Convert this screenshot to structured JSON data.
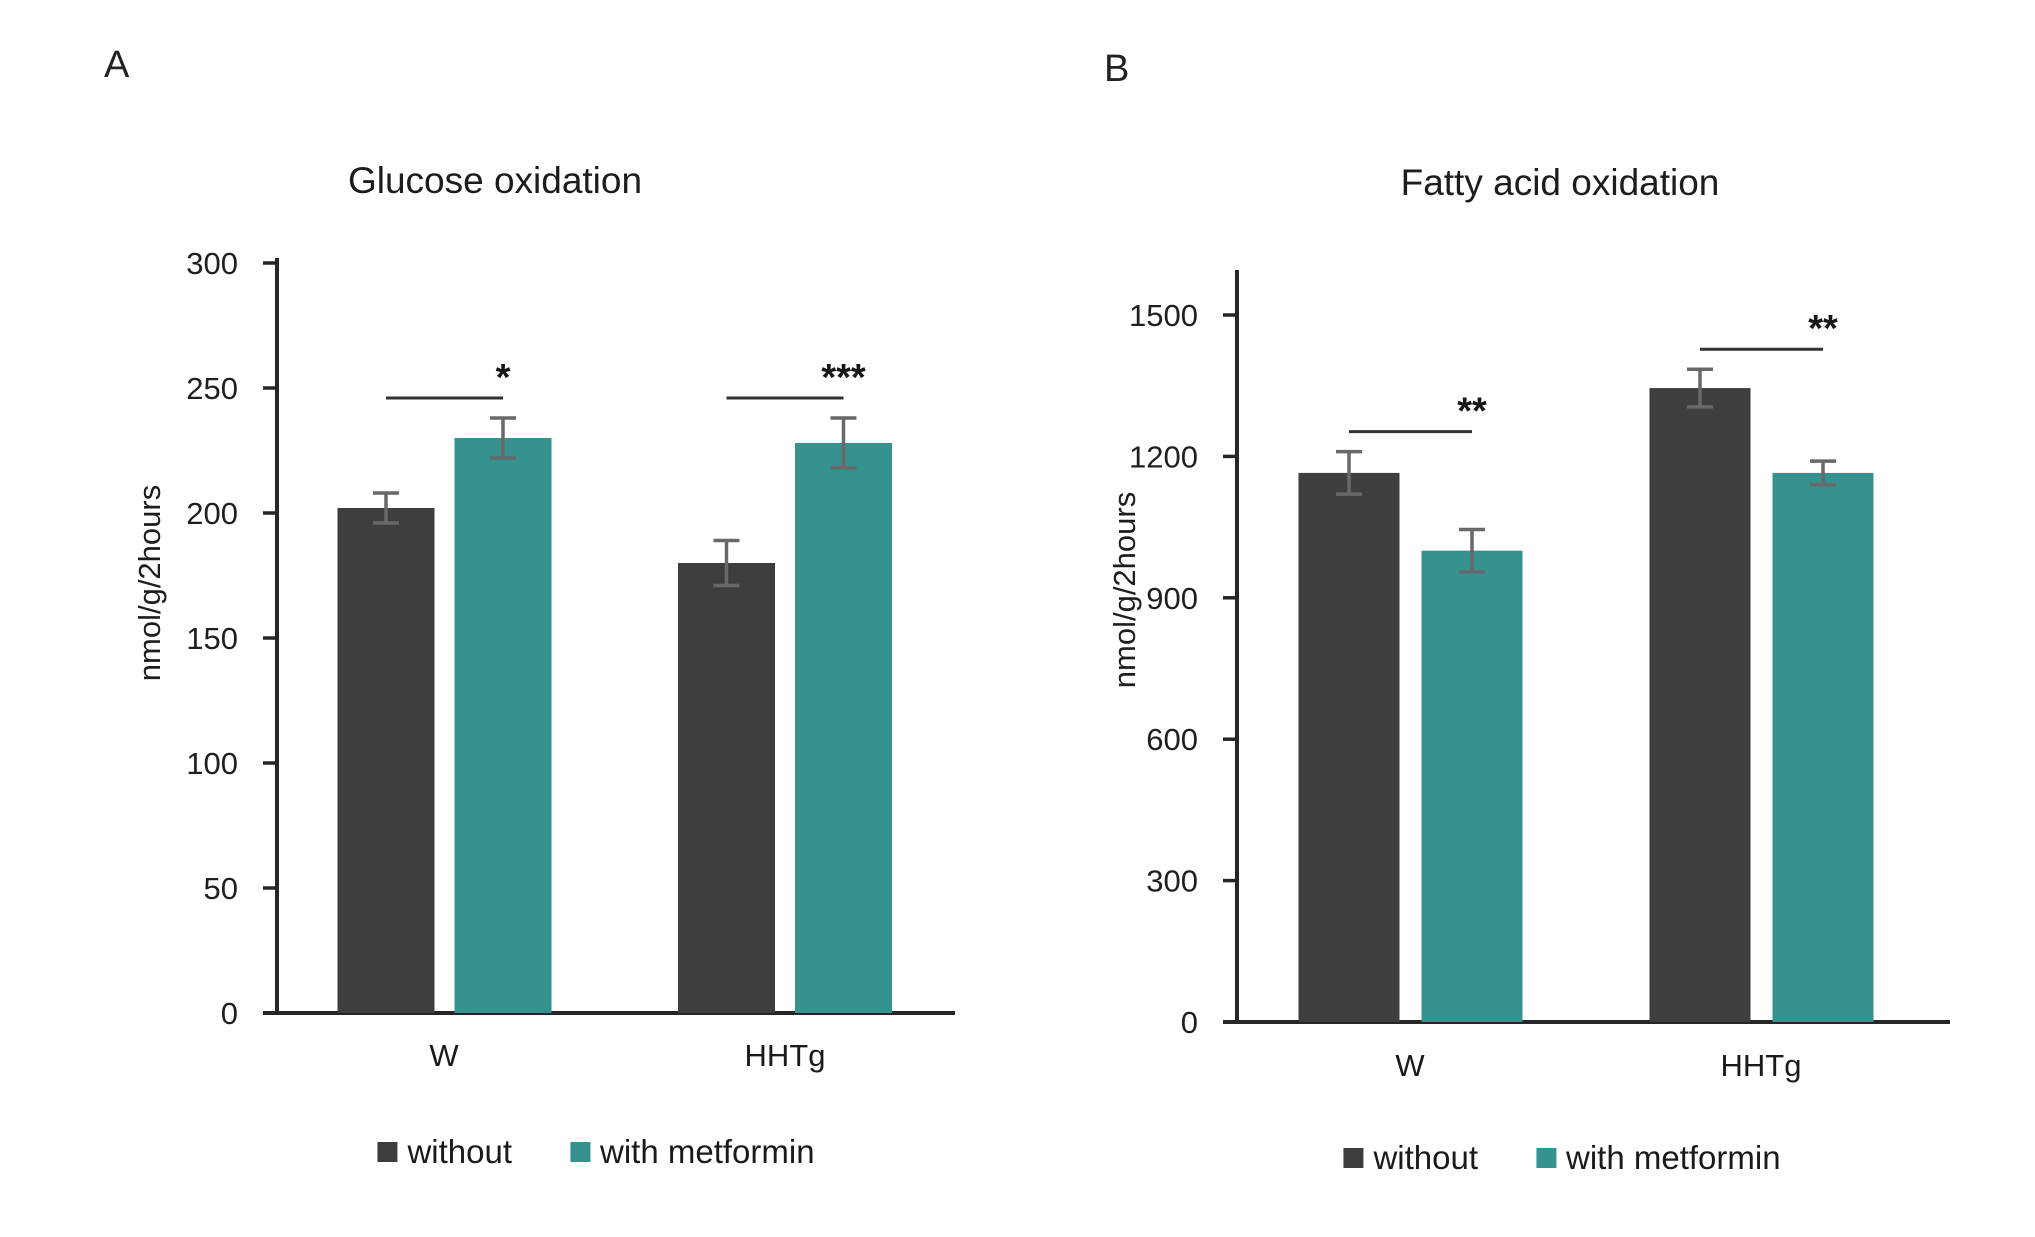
{
  "figure_background": "#ffffff",
  "accent_colors": {
    "without": "#3e3e40",
    "with_metformin": "#36928e"
  },
  "chart_data": [
    {
      "type": "bar",
      "panel": "A",
      "title": "Glucose oxidation",
      "xlabel": "",
      "ylabel": "nmol/g/2hours",
      "ylim": [
        0,
        300
      ],
      "ytick_step": 50,
      "yticks": [
        0,
        50,
        100,
        150,
        200,
        250,
        300
      ],
      "grid": false,
      "legend_position": "bottom",
      "categories": [
        "W",
        "HHTg"
      ],
      "series": [
        {
          "name": "without",
          "color": "#3e3e40",
          "values": [
            202,
            180
          ],
          "errors": [
            6,
            9
          ]
        },
        {
          "name": "with metformin",
          "color": "#36928e",
          "values": [
            230,
            228
          ],
          "errors": [
            8,
            10
          ]
        }
      ],
      "significance": [
        {
          "category": "W",
          "label": "*"
        },
        {
          "category": "HHTg",
          "label": "***"
        }
      ]
    },
    {
      "type": "bar",
      "panel": "B",
      "title": "Fatty acid oxidation",
      "xlabel": "",
      "ylabel": "nmol/g/2hours",
      "ylim": [
        0,
        1500
      ],
      "ytick_step": 300,
      "yticks": [
        0,
        300,
        600,
        900,
        1200,
        1500
      ],
      "grid": false,
      "legend_position": "bottom",
      "categories": [
        "W",
        "HHTg"
      ],
      "series": [
        {
          "name": "without",
          "color": "#3e3e40",
          "values": [
            1165,
            1345
          ],
          "errors": [
            45,
            40
          ]
        },
        {
          "name": "with metformin",
          "color": "#36928e",
          "values": [
            1000,
            1165
          ],
          "errors": [
            45,
            25
          ]
        }
      ],
      "significance": [
        {
          "category": "W",
          "label": "**"
        },
        {
          "category": "HHTg",
          "label": "**"
        }
      ]
    }
  ]
}
